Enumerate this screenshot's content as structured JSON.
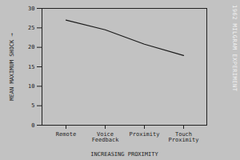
{
  "chart_data": {
    "type": "line",
    "ylabel": "MEAN MAXIMUM SHOCK",
    "xlabel": "INCREASING PROXIMITY",
    "categories": [
      "Remote",
      "Voice Feedback",
      "Proximity",
      "Touch Proximity"
    ],
    "values": [
      27,
      24.5,
      20.8,
      17.9
    ],
    "color": "#1a1a1a",
    "ylim": [
      0,
      30
    ],
    "yticks": [
      0,
      5,
      10,
      15,
      20,
      25,
      30
    ],
    "grid": false,
    "annotations": [
      "1962 MILGRAM EXPERIMENT"
    ]
  }
}
